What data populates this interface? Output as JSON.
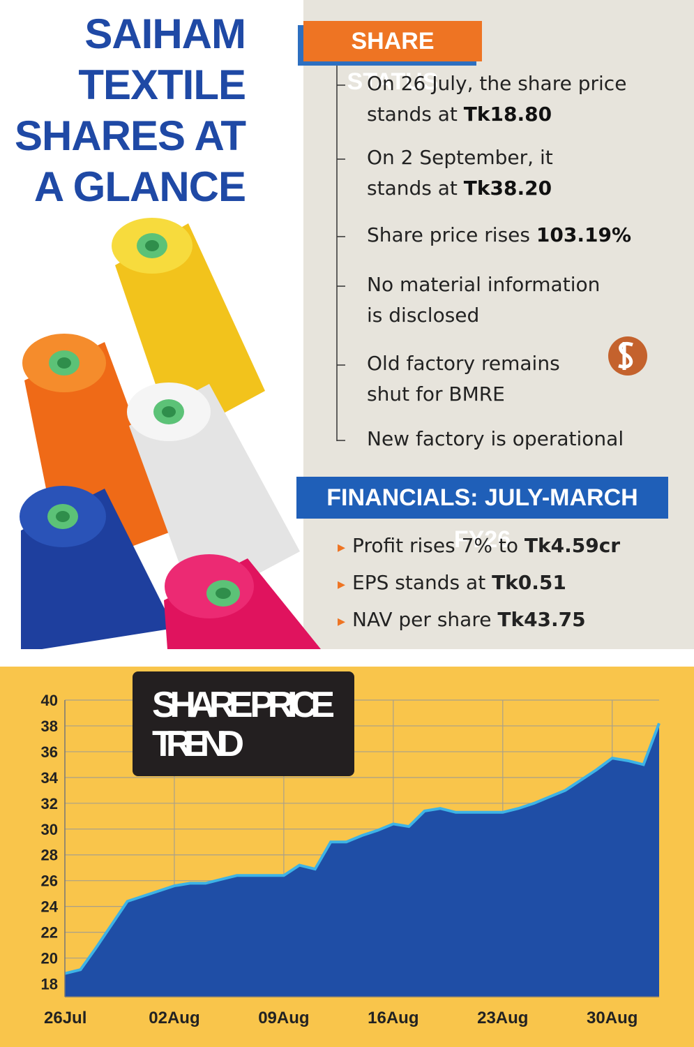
{
  "header": {
    "title_lines": [
      "SAIHAM",
      "TEXTILE",
      "SHARES AT",
      "A GLANCE"
    ]
  },
  "share_status": {
    "heading": "SHARE STATUS",
    "items": [
      {
        "lines": [
          "On 26 July, the share price",
          "stands at "
        ],
        "bold": "Tk18.80"
      },
      {
        "lines": [
          "On 2 September, it",
          "stands at "
        ],
        "bold": "Tk38.20"
      },
      {
        "lines": [
          "Share price rises "
        ],
        "bold": "103.19%"
      },
      {
        "lines": [
          "No material information",
          "is disclosed"
        ]
      },
      {
        "lines": [
          "Old factory remains",
          "shut for BMRE"
        ]
      },
      {
        "lines": [
          "New factory is operational"
        ]
      }
    ]
  },
  "financials": {
    "heading": "FINANCIALS: JULY-MARCH FY26",
    "items": [
      {
        "text": "Profit rises 7% to ",
        "bold": "Tk4.59cr"
      },
      {
        "text": "EPS stands at ",
        "bold": "Tk0.51"
      },
      {
        "text": "NAV per share ",
        "bold": "Tk43.75"
      }
    ]
  },
  "chart_data": {
    "type": "area",
    "title_lines": [
      "SHARE PRICE",
      "TREND"
    ],
    "categories": [
      "26Jul",
      null,
      null,
      null,
      null,
      null,
      null,
      "02Aug",
      null,
      null,
      null,
      null,
      null,
      null,
      "09Aug",
      null,
      null,
      null,
      null,
      null,
      null,
      "16Aug",
      null,
      null,
      null,
      null,
      null,
      null,
      "23Aug",
      null,
      null,
      null,
      null,
      null,
      null,
      "30Aug",
      null,
      null,
      null
    ],
    "values": [
      18.8,
      19.1,
      20.8,
      22.6,
      24.4,
      24.8,
      25.2,
      25.6,
      25.8,
      25.8,
      26.1,
      26.4,
      26.4,
      26.4,
      26.4,
      27.2,
      26.9,
      29.0,
      29.0,
      29.5,
      29.9,
      30.4,
      30.2,
      31.4,
      31.6,
      31.3,
      31.3,
      31.3,
      31.3,
      31.6,
      32.0,
      32.5,
      33.0,
      33.8,
      34.6,
      35.5,
      35.3,
      35.0,
      38.2
    ],
    "color": "#1f4ea6",
    "line_color": "#3db3e6",
    "ylim": [
      17,
      40
    ],
    "yticks": [
      18,
      20,
      22,
      24,
      26,
      28,
      30,
      32,
      34,
      36,
      38,
      40
    ],
    "grid": true
  }
}
